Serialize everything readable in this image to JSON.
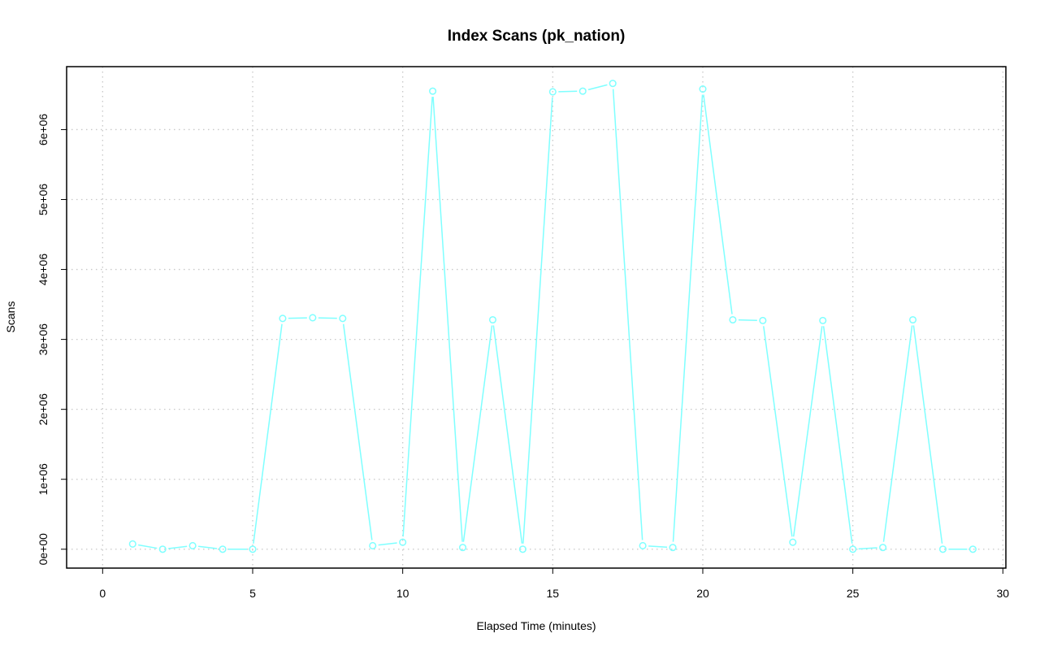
{
  "chart_data": {
    "type": "line",
    "title": "Index Scans (pk_nation)",
    "xlabel": "Elapsed Time (minutes)",
    "ylabel": "Scans",
    "xlim": [
      -1.2,
      30.1
    ],
    "ylim": [
      -270000,
      6900000
    ],
    "x_ticks": [
      0,
      5,
      10,
      15,
      20,
      25,
      30
    ],
    "x_tick_labels": [
      "0",
      "5",
      "10",
      "15",
      "20",
      "25",
      "30"
    ],
    "y_ticks": [
      0,
      1000000,
      2000000,
      3000000,
      4000000,
      5000000,
      6000000
    ],
    "y_tick_labels": [
      "0e+00",
      "1e+06",
      "2e+06",
      "3e+06",
      "4e+06",
      "5e+06",
      "6e+06"
    ],
    "grid": true,
    "series": [
      {
        "color": "#7fffff",
        "marker": "open-circle",
        "x": [
          1,
          2,
          3,
          4,
          5,
          6,
          7,
          8,
          9,
          10,
          11,
          12,
          13,
          14,
          15,
          16,
          17,
          18,
          19,
          20,
          21,
          22,
          23,
          24,
          25,
          26,
          27,
          28,
          29
        ],
        "values": [
          75000,
          0,
          50000,
          0,
          0,
          3300000,
          3310000,
          3300000,
          50000,
          100000,
          6550000,
          25000,
          3280000,
          0,
          6540000,
          6550000,
          6660000,
          50000,
          25000,
          6580000,
          3280000,
          3270000,
          100000,
          3270000,
          0,
          25000,
          3280000,
          0,
          0
        ]
      }
    ]
  }
}
